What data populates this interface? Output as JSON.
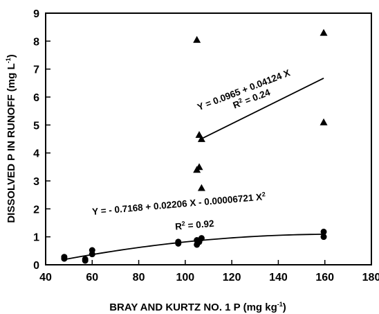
{
  "chart_data": {
    "type": "scatter",
    "xlabel": "BRAY AND KURTZ NO. 1 P (mg kg",
    "xlabel_sup": "-1",
    "xlabel_end": ")",
    "ylabel": "DISSOLVED P IN RUNOFF (mg L",
    "ylabel_sup": "-1",
    "ylabel_end": ")",
    "xlim": [
      40,
      180
    ],
    "ylim": [
      0,
      9
    ],
    "xticks": [
      40,
      60,
      80,
      100,
      120,
      140,
      160,
      180
    ],
    "yticks": [
      0,
      1,
      2,
      3,
      4,
      5,
      6,
      7,
      8,
      9
    ],
    "grid": false,
    "series": [
      {
        "marker": "triangle",
        "color": "#000000",
        "points": [
          {
            "x": 105,
            "y": 8.05
          },
          {
            "x": 106,
            "y": 4.65
          },
          {
            "x": 107,
            "y": 4.5
          },
          {
            "x": 106,
            "y": 3.5
          },
          {
            "x": 105,
            "y": 3.4
          },
          {
            "x": 107,
            "y": 2.75
          },
          {
            "x": 159.5,
            "y": 8.3
          },
          {
            "x": 159.5,
            "y": 5.1
          }
        ],
        "fit": {
          "kind": "linear",
          "intercept": 0.0965,
          "slope": 0.04124,
          "x_range": [
            106,
            159.5
          ],
          "equation": "Y = 0.0965 + 0.04124 X",
          "r2_prefix": "R",
          "r2_sup": "2",
          "r2_value": " = 0.24"
        }
      },
      {
        "marker": "circle",
        "color": "#000000",
        "points": [
          {
            "x": 48,
            "y": 0.28
          },
          {
            "x": 48,
            "y": 0.22
          },
          {
            "x": 57,
            "y": 0.2
          },
          {
            "x": 57,
            "y": 0.15
          },
          {
            "x": 60,
            "y": 0.52
          },
          {
            "x": 60,
            "y": 0.38
          },
          {
            "x": 97,
            "y": 0.82
          },
          {
            "x": 97,
            "y": 0.76
          },
          {
            "x": 105,
            "y": 0.88
          },
          {
            "x": 105,
            "y": 0.72
          },
          {
            "x": 106,
            "y": 0.82
          },
          {
            "x": 107,
            "y": 0.95
          },
          {
            "x": 159.5,
            "y": 1.18
          },
          {
            "x": 159.5,
            "y": 1.0
          }
        ],
        "fit": {
          "kind": "quadratic",
          "c0": -0.7168,
          "c1": 0.02206,
          "c2": -6.721e-05,
          "x_range": [
            48,
            159.5
          ],
          "equation": "Y = - 0.7168 + 0.02206 X - 0.00006721 X",
          "equation_sup": "2",
          "r2_prefix": "R",
          "r2_sup": "2",
          "r2_value": " = 0.92"
        }
      }
    ]
  }
}
